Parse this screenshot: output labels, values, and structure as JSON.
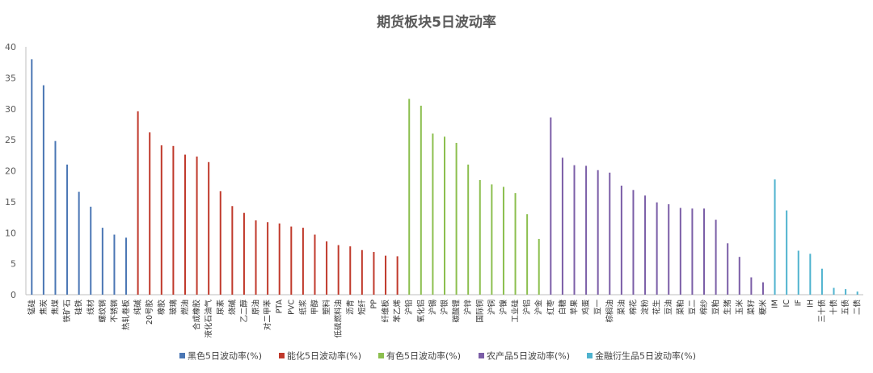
{
  "chart_data": {
    "type": "bar",
    "title": "期货板块5日波动率",
    "xlabel": "",
    "ylabel": "",
    "ylim": [
      0,
      40
    ],
    "yticks": [
      0,
      5,
      10,
      15,
      20,
      25,
      30,
      35,
      40
    ],
    "grid": false,
    "legend_position": "bottom",
    "series": [
      {
        "name": "黑色5日波动率(%)",
        "color": "#4a76b4",
        "categories": [
          "锰硅",
          "焦炭",
          "焦煤",
          "铁矿石",
          "硅铁",
          "线材",
          "螺纹钢",
          "不锈钢",
          "热轧卷板"
        ],
        "values": [
          38.0,
          33.8,
          24.8,
          21.0,
          16.6,
          14.2,
          10.8,
          9.7,
          9.2
        ]
      },
      {
        "name": "能化5日波动率(%)",
        "color": "#c0392b",
        "categories": [
          "纯碱",
          "20号胶",
          "橡胶",
          "玻璃",
          "燃油",
          "合成橡胶",
          "液化石油气",
          "尿素",
          "烧碱",
          "乙二醇",
          "原油",
          "对二甲苯",
          "PTA",
          "PVC",
          "纸浆",
          "甲醇",
          "塑料",
          "低硫燃料油",
          "沥青",
          "短纤",
          "PP",
          "纤维板",
          "苯乙烯"
        ],
        "values": [
          29.6,
          26.2,
          24.1,
          24.0,
          22.6,
          22.3,
          21.4,
          16.7,
          14.3,
          13.2,
          12.0,
          11.7,
          11.5,
          11.0,
          10.8,
          9.7,
          8.6,
          8.0,
          7.8,
          7.2,
          6.9,
          6.3,
          6.2
        ]
      },
      {
        "name": "有色5日波动率(%)",
        "color": "#8cbf4f",
        "categories": [
          "沪铅",
          "氧化铝",
          "沪锡",
          "沪银",
          "碳酸锂",
          "沪锌",
          "国际铜",
          "沪铜",
          "沪镍",
          "工业硅",
          "沪铝",
          "沪金"
        ],
        "values": [
          31.6,
          30.5,
          26.0,
          25.5,
          24.5,
          21.0,
          18.5,
          17.8,
          17.4,
          16.4,
          13.0,
          9.0
        ]
      },
      {
        "name": "农产品5日波动率(%)",
        "color": "#7b5ea7",
        "categories": [
          "红枣",
          "白糖",
          "苹果",
          "鸡蛋",
          "豆一",
          "棕榈油",
          "菜油",
          "棉花",
          "淀粉",
          "花生",
          "豆油",
          "菜粕",
          "豆二",
          "棉纱",
          "豆粕",
          "生猪",
          "玉米",
          "菜籽",
          "粳米"
        ],
        "values": [
          28.6,
          22.1,
          20.9,
          20.8,
          20.1,
          19.7,
          17.6,
          16.9,
          16.0,
          14.9,
          14.6,
          14.0,
          13.9,
          13.9,
          12.1,
          8.3,
          6.1,
          2.8,
          2.0
        ]
      },
      {
        "name": "金融衍生品5日波动率(%)",
        "color": "#4fb3cf",
        "categories": [
          "IM",
          "IC",
          "IF",
          "IH",
          "三十债",
          "十债",
          "五债",
          "二债"
        ],
        "values": [
          18.6,
          13.6,
          7.1,
          6.6,
          4.2,
          1.1,
          0.9,
          0.5
        ]
      }
    ]
  }
}
